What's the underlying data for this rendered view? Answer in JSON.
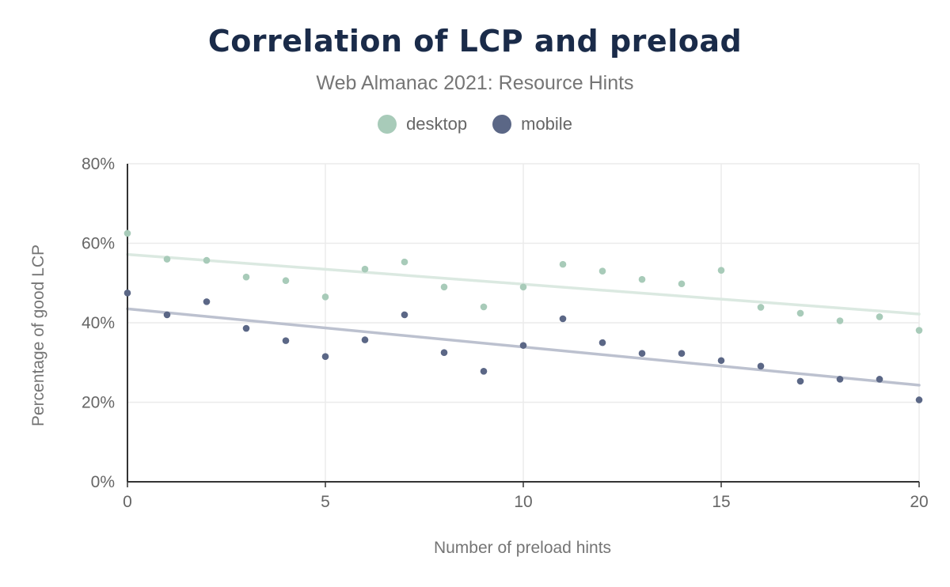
{
  "chart_data": {
    "type": "scatter",
    "title": "Correlation of LCP and preload",
    "subtitle": "Web Almanac 2021: Resource Hints",
    "xlabel": "Number of preload hints",
    "ylabel": "Percentage of good LCP",
    "xlim": [
      0,
      20
    ],
    "ylim": [
      0,
      80
    ],
    "x_ticks": [
      "0",
      "5",
      "10",
      "15",
      "20"
    ],
    "y_ticks": [
      "0%",
      "20%",
      "40%",
      "60%",
      "80%"
    ],
    "grid": true,
    "legend_position": "top-center",
    "series": [
      {
        "name": "desktop",
        "color": "#a8cbb9",
        "trend_color": "#dbe9e1",
        "x": [
          0,
          1,
          2,
          3,
          4,
          5,
          6,
          7,
          8,
          9,
          10,
          11,
          12,
          13,
          14,
          15,
          16,
          17,
          18,
          19,
          20
        ],
        "y": [
          62.5,
          56.0,
          55.7,
          51.5,
          50.6,
          46.5,
          53.5,
          55.3,
          49.0,
          44.0,
          49.0,
          54.7,
          53.0,
          50.9,
          49.8,
          53.2,
          43.9,
          42.4,
          40.5,
          41.5,
          38.1
        ],
        "trend": [
          57.2,
          42.2
        ]
      },
      {
        "name": "mobile",
        "color": "#5b6786",
        "trend_color": "#bcc1cf",
        "x": [
          0,
          1,
          2,
          3,
          4,
          5,
          6,
          7,
          8,
          9,
          10,
          11,
          12,
          13,
          14,
          15,
          16,
          17,
          18,
          19,
          20
        ],
        "y": [
          47.5,
          42.0,
          45.3,
          38.6,
          35.5,
          31.5,
          35.7,
          42.0,
          32.5,
          27.8,
          34.3,
          41.0,
          35.0,
          32.3,
          32.3,
          30.5,
          29.1,
          25.3,
          25.8,
          25.8,
          20.6
        ],
        "trend": [
          43.5,
          24.3
        ]
      }
    ]
  }
}
